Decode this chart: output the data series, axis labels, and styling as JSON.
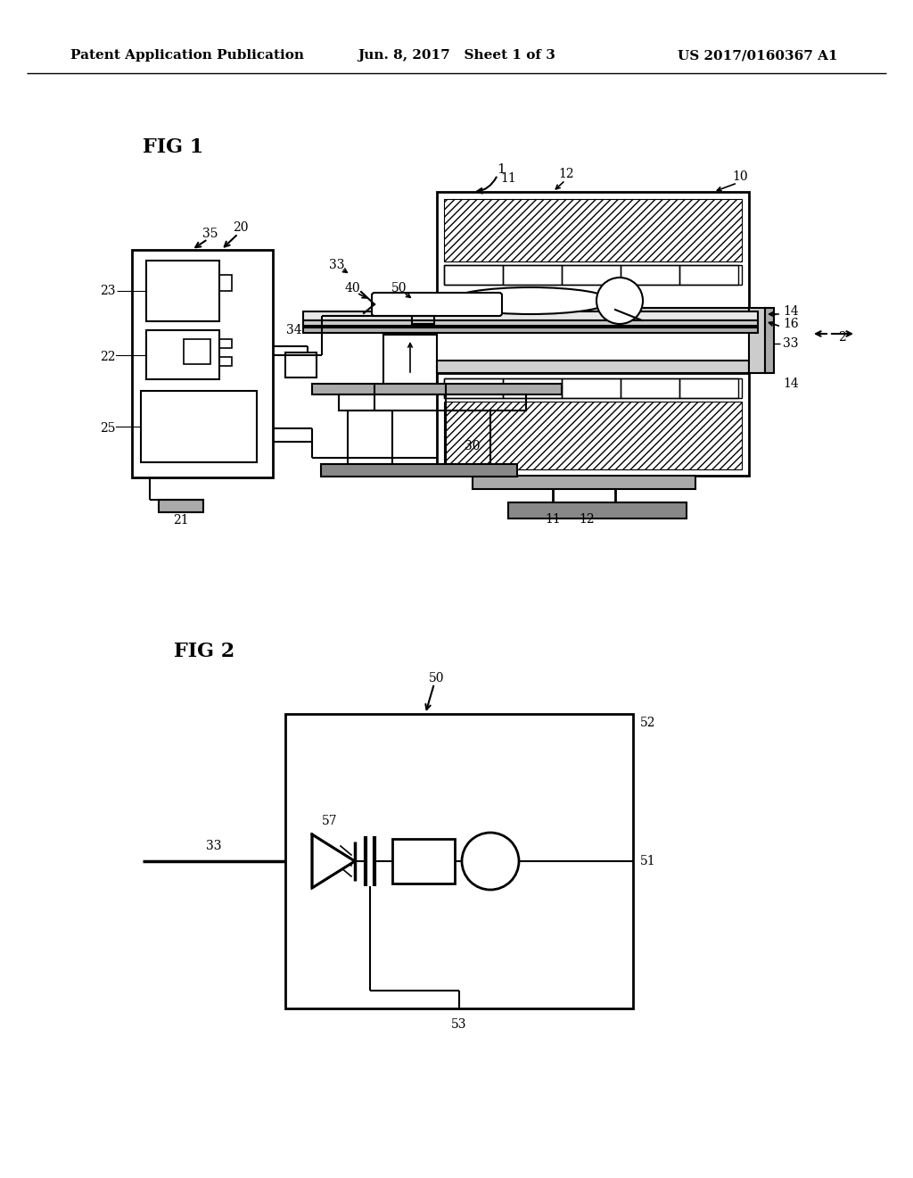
{
  "background_color": "#ffffff",
  "header_left": "Patent Application Publication",
  "header_center": "Jun. 8, 2017   Sheet 1 of 3",
  "header_right": "US 2017/0160367 A1",
  "fig1_label": "FIG 1",
  "fig2_label": "FIG 2"
}
